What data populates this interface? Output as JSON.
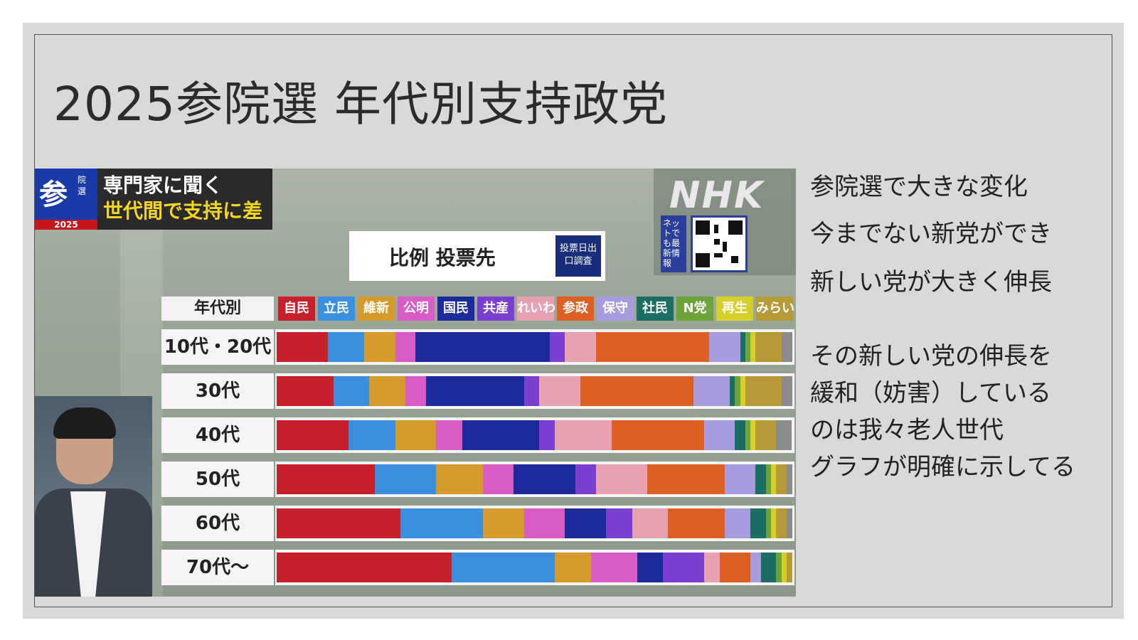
{
  "slide": {
    "title": "2025参院選 年代別支持政党"
  },
  "notes": [
    "参院選で大きな変化",
    "今までない新党ができ",
    "新しい党が大きく伸長",
    "その新しい党の伸長を",
    "緩和（妨害）している",
    "のは我々老人世代",
    "グラフが明確に示してる"
  ],
  "broadcast": {
    "badge_main": "参",
    "badge_sub": "院選",
    "badge_year": "2025",
    "caption_line1": "専門家に聞く",
    "caption_line2": "世代間で支持に差",
    "network_logo": "NHK",
    "network_info": "ネットでも最新情報",
    "exit_poll_label": "投票日出口調査"
  },
  "chart_data": {
    "type": "bar",
    "stacked": true,
    "orientation": "horizontal",
    "normalized": true,
    "title": "比例 投票先",
    "category_header": "年代別",
    "categories": [
      "10代・20代",
      "30代",
      "40代",
      "50代",
      "60代",
      "70代〜"
    ],
    "series": [
      {
        "name": "自民",
        "color": "#c8202b",
        "values": [
          10,
          11,
          14,
          19,
          24,
          34
        ]
      },
      {
        "name": "立民",
        "color": "#3a8fde",
        "values": [
          7,
          7,
          9,
          12,
          16,
          20
        ]
      },
      {
        "name": "維新",
        "color": "#d49a2a",
        "values": [
          6,
          7,
          8,
          9,
          8,
          7
        ]
      },
      {
        "name": "公明",
        "color": "#d95bc5",
        "values": [
          4,
          4,
          5,
          6,
          8,
          9
        ]
      },
      {
        "name": "国民",
        "color": "#1d2a9a",
        "values": [
          26,
          19,
          15,
          12,
          8,
          5
        ]
      },
      {
        "name": "共産",
        "color": "#7b3fd0",
        "values": [
          3,
          3,
          3,
          4,
          5,
          8
        ]
      },
      {
        "name": "れいわ",
        "color": "#e7a1b1",
        "values": [
          6,
          8,
          11,
          10,
          7,
          3
        ]
      },
      {
        "name": "参政",
        "color": "#dd6022",
        "values": [
          22,
          22,
          18,
          15,
          11,
          6
        ]
      },
      {
        "name": "保守",
        "color": "#a69ddf",
        "values": [
          6,
          7,
          6,
          6,
          5,
          2
        ]
      },
      {
        "name": "社民",
        "color": "#1b6e62",
        "values": [
          1,
          1,
          2,
          2,
          3,
          3
        ]
      },
      {
        "name": "N党",
        "color": "#6da33b",
        "values": [
          1,
          1,
          1,
          1,
          1,
          1
        ]
      },
      {
        "name": "再生",
        "color": "#d6cf2a",
        "values": [
          1,
          1,
          1,
          1,
          1,
          1
        ]
      },
      {
        "name": "みらい",
        "color": "#b59a35",
        "values": [
          5,
          7,
          4,
          2,
          2,
          1
        ]
      },
      {
        "name": "",
        "color": "#8a8a8a",
        "values": [
          2,
          2,
          3,
          1,
          1,
          0
        ]
      }
    ]
  }
}
